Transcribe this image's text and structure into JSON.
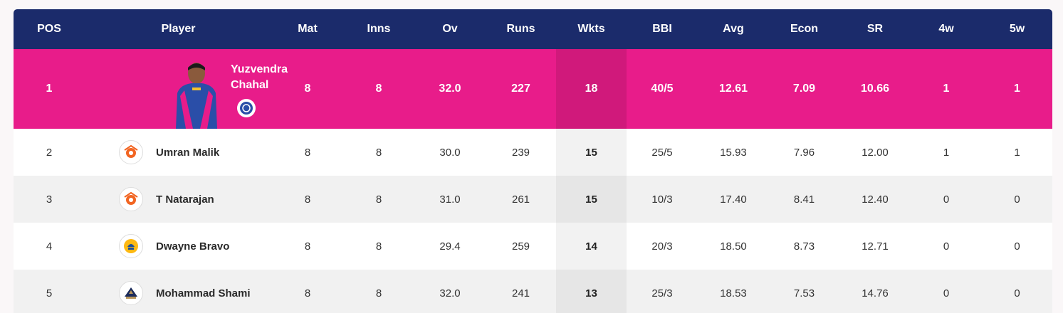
{
  "columns": {
    "pos": "POS",
    "player": "Player",
    "mat": "Mat",
    "inns": "Inns",
    "ov": "Ov",
    "runs": "Runs",
    "wkts": "Wkts",
    "bbi": "BBI",
    "avg": "Avg",
    "econ": "Econ",
    "sr": "SR",
    "w4": "4w",
    "w5": "5w"
  },
  "leader": {
    "pos": "1",
    "name_line1": "Yuzvendra",
    "name_line2": "Chahal",
    "team_icon": "rajasthan-royals-logo",
    "mat": "8",
    "inns": "8",
    "ov": "32.0",
    "runs": "227",
    "wkts": "18",
    "bbi": "40/5",
    "avg": "12.61",
    "econ": "7.09",
    "sr": "10.66",
    "w4": "1",
    "w5": "1"
  },
  "rows": [
    {
      "pos": "2",
      "name": "Umran Malik",
      "team_icon": "sunrisers-hyderabad-logo",
      "mat": "8",
      "inns": "8",
      "ov": "30.0",
      "runs": "239",
      "wkts": "15",
      "bbi": "25/5",
      "avg": "15.93",
      "econ": "7.96",
      "sr": "12.00",
      "w4": "1",
      "w5": "1"
    },
    {
      "pos": "3",
      "name": "T Natarajan",
      "team_icon": "sunrisers-hyderabad-logo",
      "mat": "8",
      "inns": "8",
      "ov": "31.0",
      "runs": "261",
      "wkts": "15",
      "bbi": "10/3",
      "avg": "17.40",
      "econ": "8.41",
      "sr": "12.40",
      "w4": "0",
      "w5": "0"
    },
    {
      "pos": "4",
      "name": "Dwayne Bravo",
      "team_icon": "chennai-super-kings-logo",
      "mat": "8",
      "inns": "8",
      "ov": "29.4",
      "runs": "259",
      "wkts": "14",
      "bbi": "20/3",
      "avg": "18.50",
      "econ": "8.73",
      "sr": "12.71",
      "w4": "0",
      "w5": "0"
    },
    {
      "pos": "5",
      "name": "Mohammad Shami",
      "team_icon": "gujarat-titans-logo",
      "mat": "8",
      "inns": "8",
      "ov": "32.0",
      "runs": "241",
      "wkts": "13",
      "bbi": "25/3",
      "avg": "18.53",
      "econ": "7.53",
      "sr": "14.76",
      "w4": "0",
      "w5": "0"
    }
  ],
  "colors": {
    "header": "#1b2b6b",
    "leader": "#e81c8a",
    "alt_row": "#f1f1f1"
  }
}
